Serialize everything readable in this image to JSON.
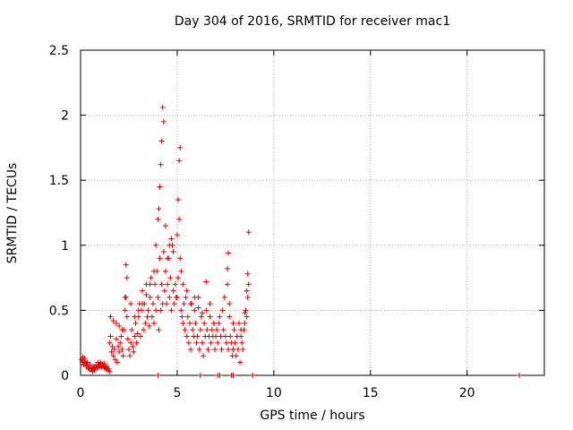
{
  "chart_data": {
    "type": "scatter",
    "title": "Day 304 of 2016, SRMTID for receiver mac1",
    "xlabel": "GPS time / hours",
    "ylabel": "SRMTID / TECUs",
    "xlim": [
      0,
      24
    ],
    "ylim": [
      0,
      2.5
    ],
    "xticks": [
      0,
      5,
      10,
      15,
      20
    ],
    "yticks": [
      0,
      0.5,
      1,
      1.5,
      2,
      2.5
    ],
    "xtick_labels": [
      "0",
      "5",
      "10",
      "15",
      "20"
    ],
    "ytick_labels": [
      "0",
      "0.5",
      "1",
      "1.5",
      "2",
      "2.5"
    ],
    "grid": true,
    "marker": "+",
    "color": "#e00000",
    "series": [
      {
        "name": "SRMTID",
        "x": [
          0.05,
          0.1,
          0.15,
          0.2,
          0.25,
          0.3,
          0.35,
          0.4,
          0.45,
          0.5,
          0.55,
          0.6,
          0.65,
          0.7,
          0.75,
          0.8,
          0.85,
          0.9,
          0.95,
          1.0,
          1.05,
          1.1,
          1.15,
          1.2,
          1.25,
          1.3,
          1.35,
          1.4,
          1.45,
          1.5,
          0.12,
          0.22,
          0.32,
          0.42,
          0.62,
          0.72,
          0.92,
          1.02,
          1.22,
          1.32,
          1.5,
          1.55,
          1.6,
          1.65,
          1.7,
          1.75,
          1.8,
          1.85,
          1.9,
          1.95,
          2.0,
          2.05,
          2.1,
          2.15,
          2.2,
          2.25,
          2.3,
          2.35,
          2.4,
          2.45,
          2.5,
          2.55,
          2.6,
          2.65,
          2.7,
          2.75,
          2.8,
          2.85,
          2.9,
          2.95,
          3.0,
          3.05,
          3.1,
          3.15,
          3.2,
          3.25,
          3.3,
          3.35,
          3.4,
          3.45,
          3.5,
          3.55,
          3.6,
          3.65,
          3.7,
          3.75,
          3.8,
          3.85,
          3.9,
          3.95,
          4.0,
          4.05,
          4.1,
          4.15,
          4.2,
          4.25,
          4.3,
          4.35,
          4.4,
          4.45,
          4.5,
          4.55,
          4.6,
          4.65,
          4.7,
          4.75,
          4.8,
          4.85,
          4.9,
          4.95,
          1.55,
          1.7,
          1.85,
          2.0,
          2.15,
          2.3,
          2.35,
          2.4,
          2.6,
          2.8,
          3.0,
          3.2,
          3.4,
          3.6,
          3.8,
          3.9,
          4.0,
          4.05,
          4.1,
          4.15,
          4.2,
          4.25,
          4.3,
          4.4,
          4.5,
          4.6,
          4.7,
          4.8,
          5.0,
          5.05,
          5.1,
          5.15,
          5.2,
          5.25,
          5.3,
          5.35,
          5.4,
          5.45,
          5.5,
          5.55,
          5.6,
          5.65,
          5.7,
          5.75,
          5.8,
          5.85,
          5.9,
          5.95,
          6.0,
          6.05,
          6.1,
          6.15,
          6.2,
          6.25,
          6.3,
          6.35,
          6.4,
          6.45,
          6.5,
          6.55,
          6.6,
          6.65,
          6.7,
          6.75,
          6.8,
          6.85,
          6.9,
          6.95,
          5.0,
          5.05,
          5.1,
          5.15,
          5.2,
          5.3,
          5.5,
          5.7,
          5.9,
          6.1,
          6.3,
          6.5,
          6.7,
          6.9,
          7.0,
          7.05,
          7.1,
          7.15,
          7.2,
          7.25,
          7.3,
          7.35,
          7.4,
          7.45,
          7.5,
          7.55,
          7.6,
          7.65,
          7.7,
          7.75,
          7.8,
          7.85,
          7.9,
          7.95,
          8.0,
          8.05,
          8.1,
          8.15,
          8.2,
          8.25,
          8.3,
          8.35,
          8.4,
          8.45,
          8.5,
          8.55,
          8.6,
          8.65,
          8.7,
          7.6,
          7.65,
          7.7,
          7.9,
          8.1,
          8.3,
          8.5,
          8.6,
          8.65,
          8.7,
          4.0,
          6.2,
          7.1,
          7.2,
          7.8,
          7.9,
          8.9,
          22.7
        ],
        "y": [
          0.12,
          0.1,
          0.08,
          0.11,
          0.09,
          0.07,
          0.1,
          0.06,
          0.05,
          0.08,
          0.04,
          0.06,
          0.05,
          0.07,
          0.05,
          0.08,
          0.06,
          0.1,
          0.08,
          0.07,
          0.09,
          0.06,
          0.08,
          0.07,
          0.06,
          0.05,
          0.07,
          0.04,
          0.05,
          0.03,
          0.14,
          0.13,
          0.09,
          0.05,
          0.03,
          0.04,
          0.06,
          0.1,
          0.09,
          0.06,
          0.25,
          0.3,
          0.18,
          0.22,
          0.15,
          0.2,
          0.12,
          0.28,
          0.1,
          0.22,
          0.18,
          0.25,
          0.3,
          0.2,
          0.15,
          0.35,
          0.5,
          0.6,
          0.45,
          0.28,
          0.2,
          0.15,
          0.25,
          0.35,
          0.22,
          0.18,
          0.3,
          0.4,
          0.25,
          0.32,
          0.45,
          0.55,
          0.3,
          0.5,
          0.65,
          0.35,
          0.55,
          0.4,
          0.7,
          0.45,
          0.5,
          0.38,
          0.6,
          0.75,
          0.45,
          0.55,
          0.4,
          0.7,
          0.5,
          0.8,
          0.6,
          0.35,
          0.9,
          0.5,
          0.7,
          0.55,
          0.95,
          0.65,
          0.8,
          0.55,
          0.7,
          0.9,
          0.6,
          0.75,
          0.5,
          1.0,
          0.65,
          0.55,
          0.7,
          0.6,
          0.45,
          0.42,
          0.4,
          0.38,
          0.35,
          0.6,
          0.85,
          0.75,
          0.55,
          0.45,
          0.5,
          0.55,
          0.62,
          0.7,
          0.8,
          1.0,
          1.2,
          1.28,
          1.45,
          1.62,
          1.8,
          2.06,
          1.95,
          1.15,
          0.9,
          1.0,
          1.05,
          0.95,
          0.6,
          0.75,
          1.65,
          1.75,
          0.5,
          0.45,
          0.4,
          0.55,
          0.35,
          0.6,
          0.3,
          0.45,
          0.25,
          0.4,
          0.2,
          0.55,
          0.35,
          0.3,
          0.5,
          0.4,
          0.25,
          0.3,
          0.6,
          0.2,
          0.35,
          0.45,
          0.25,
          0.15,
          0.4,
          0.3,
          0.5,
          0.35,
          0.2,
          0.3,
          0.45,
          0.25,
          0.35,
          0.3,
          0.4,
          0.2,
          1.08,
          1.35,
          1.2,
          0.9,
          0.8,
          0.7,
          0.65,
          0.55,
          0.6,
          0.52,
          0.48,
          0.72,
          0.55,
          0.4,
          0.3,
          0.35,
          0.25,
          0.4,
          0.45,
          0.3,
          0.2,
          0.5,
          0.35,
          0.6,
          0.3,
          0.25,
          0.7,
          0.2,
          0.45,
          0.3,
          0.25,
          0.15,
          0.2,
          0.35,
          0.25,
          0.15,
          0.3,
          0.2,
          0.4,
          0.1,
          0.3,
          0.25,
          0.2,
          0.35,
          0.4,
          0.5,
          0.45,
          0.6,
          0.7,
          0.82,
          0.94,
          0.55,
          0.4,
          0.3,
          0.35,
          0.48,
          0.65,
          0.78,
          1.1,
          0.0,
          0.0,
          0.0,
          0.0,
          0.0,
          0.0,
          0.0,
          0.0
        ]
      }
    ]
  }
}
